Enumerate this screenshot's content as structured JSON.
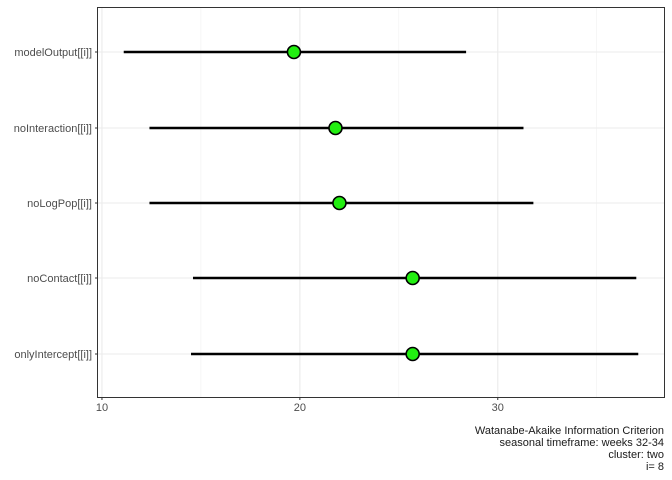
{
  "chart_data": {
    "type": "scatter",
    "subtype": "point-range",
    "categories": [
      "modelOutput[[i]]",
      "noInteraction[[i]]",
      "noLogPop[[i]]",
      "noContact[[i]]",
      "onlyIntercept[[i]]"
    ],
    "estimates": [
      19.7,
      21.8,
      22.0,
      25.7,
      25.7
    ],
    "lower": [
      11.1,
      12.4,
      12.4,
      14.6,
      14.5
    ],
    "upper": [
      28.4,
      31.3,
      31.8,
      37.0,
      37.1
    ],
    "xlim": [
      9.8,
      38.4
    ],
    "xticks": [
      10,
      20,
      30
    ],
    "grid": true,
    "point_color": "#22ee11",
    "title": "",
    "xlabel": "",
    "ylabel": "",
    "caption_lines": [
      "Watanabe-Akaike Information Criterion",
      "seasonal timeframe: weeks 32-34",
      "cluster: two",
      "i= 8"
    ]
  }
}
